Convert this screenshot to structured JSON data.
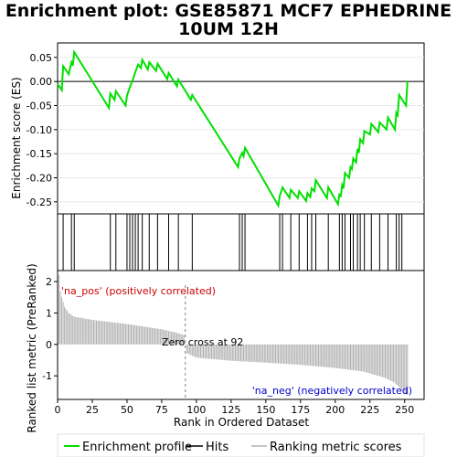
{
  "title_line1": "Enrichment plot: GSE85871 MCF7 EPHEDRINE",
  "title_line2": "10UM 12H",
  "ylabel_top": "Enrichment score (ES)",
  "ylabel_bottom": "Ranked list metric (PreRanked)",
  "xlabel": "Rank in Ordered Dataset",
  "pos_label": "'na_pos' (positively correlated)",
  "neg_label": "'na_neg' (negatively correlated)",
  "zero_cross_label": "Zero cross at 92",
  "legend": [
    {
      "label": "Enrichment profile",
      "color": "#00e000"
    },
    {
      "label": "Hits",
      "color": "#000000"
    },
    {
      "label": "Ranking metric scores",
      "color": "#b0b0b0"
    }
  ],
  "colors": {
    "profile": "#00e000",
    "hits": "#000000",
    "metric": "#b0b0b0",
    "pos_label": "#cc0000",
    "neg_label": "#0000cc",
    "zero_line": "#808080"
  },
  "chart_data": {
    "type": "line",
    "n_genes": 252,
    "zero_cross": 92,
    "es_ylim": [
      -0.275,
      0.08
    ],
    "es_yticks": [
      0.05,
      0.0,
      -0.05,
      -0.1,
      -0.15,
      -0.2,
      -0.25
    ],
    "metric_ylim": [
      -1.75,
      2.35
    ],
    "metric_yticks": [
      2,
      1,
      0,
      -1
    ],
    "xlim": [
      0,
      264
    ],
    "xticks": [
      0,
      25,
      50,
      75,
      100,
      125,
      150,
      175,
      200,
      225,
      250
    ],
    "hits": [
      4,
      10,
      12,
      38,
      42,
      50,
      52,
      54,
      56,
      58,
      61,
      66,
      72,
      80,
      87,
      97,
      131,
      133,
      135,
      160,
      162,
      168,
      174,
      180,
      183,
      186,
      195,
      203,
      205,
      207,
      211,
      213,
      216,
      218,
      221,
      226,
      232,
      238,
      244,
      246,
      248
    ],
    "es_profile": [
      [
        0,
        -0.005
      ],
      [
        3,
        -0.018
      ],
      [
        4,
        0.032
      ],
      [
        8,
        0.015
      ],
      [
        10,
        0.04
      ],
      [
        11,
        0.033
      ],
      [
        12,
        0.061
      ],
      [
        37,
        -0.055
      ],
      [
        38,
        -0.025
      ],
      [
        41,
        -0.038
      ],
      [
        42,
        -0.02
      ],
      [
        49,
        -0.05
      ],
      [
        50,
        -0.03
      ],
      [
        52,
        -0.012
      ],
      [
        54,
        0.002
      ],
      [
        56,
        0.02
      ],
      [
        58,
        0.035
      ],
      [
        60,
        0.028
      ],
      [
        61,
        0.045
      ],
      [
        65,
        0.025
      ],
      [
        66,
        0.04
      ],
      [
        71,
        0.022
      ],
      [
        72,
        0.037
      ],
      [
        79,
        0.005
      ],
      [
        80,
        0.018
      ],
      [
        86,
        -0.01
      ],
      [
        87,
        0.004
      ],
      [
        96,
        -0.038
      ],
      [
        97,
        -0.028
      ],
      [
        130,
        -0.178
      ],
      [
        131,
        -0.16
      ],
      [
        133,
        -0.148
      ],
      [
        134,
        -0.155
      ],
      [
        135,
        -0.138
      ],
      [
        159,
        -0.258
      ],
      [
        160,
        -0.238
      ],
      [
        162,
        -0.22
      ],
      [
        167,
        -0.242
      ],
      [
        168,
        -0.225
      ],
      [
        173,
        -0.242
      ],
      [
        174,
        -0.228
      ],
      [
        179,
        -0.248
      ],
      [
        180,
        -0.232
      ],
      [
        182,
        -0.24
      ],
      [
        183,
        -0.222
      ],
      [
        185,
        -0.228
      ],
      [
        186,
        -0.205
      ],
      [
        194,
        -0.242
      ],
      [
        195,
        -0.22
      ],
      [
        202,
        -0.255
      ],
      [
        203,
        -0.235
      ],
      [
        204,
        -0.238
      ],
      [
        205,
        -0.215
      ],
      [
        206,
        -0.222
      ],
      [
        207,
        -0.19
      ],
      [
        210,
        -0.2
      ],
      [
        211,
        -0.178
      ],
      [
        212,
        -0.182
      ],
      [
        213,
        -0.16
      ],
      [
        215,
        -0.168
      ],
      [
        216,
        -0.14
      ],
      [
        217,
        -0.148
      ],
      [
        218,
        -0.12
      ],
      [
        220,
        -0.128
      ],
      [
        221,
        -0.103
      ],
      [
        225,
        -0.11
      ],
      [
        226,
        -0.088
      ],
      [
        231,
        -0.105
      ],
      [
        232,
        -0.085
      ],
      [
        237,
        -0.1
      ],
      [
        238,
        -0.075
      ],
      [
        243,
        -0.1
      ],
      [
        244,
        -0.065
      ],
      [
        245,
        -0.07
      ],
      [
        246,
        -0.028
      ],
      [
        251,
        -0.05
      ],
      [
        252,
        0.0
      ]
    ],
    "metric_profile": [
      [
        1,
        2.2
      ],
      [
        2,
        1.7
      ],
      [
        3,
        1.5
      ],
      [
        5,
        1.2
      ],
      [
        8,
        1.0
      ],
      [
        12,
        0.88
      ],
      [
        25,
        0.78
      ],
      [
        50,
        0.65
      ],
      [
        75,
        0.48
      ],
      [
        85,
        0.38
      ],
      [
        91,
        0.3
      ],
      [
        92,
        0.0
      ],
      [
        93,
        -0.28
      ],
      [
        100,
        -0.42
      ],
      [
        125,
        -0.52
      ],
      [
        150,
        -0.58
      ],
      [
        175,
        -0.65
      ],
      [
        200,
        -0.75
      ],
      [
        220,
        -0.86
      ],
      [
        235,
        -1.05
      ],
      [
        242,
        -1.2
      ],
      [
        246,
        -1.35
      ],
      [
        249,
        -1.5
      ],
      [
        251,
        -1.6
      ]
    ],
    "band": [
      {
        "from": 0,
        "to": 2,
        "color": "#ff0000"
      },
      {
        "from": 2,
        "to": 6,
        "color": "#ff1f1f"
      },
      {
        "from": 6,
        "to": 12,
        "color": "#ff3a3a"
      },
      {
        "from": 12,
        "to": 24,
        "color": "#ff5050"
      },
      {
        "from": 24,
        "to": 36,
        "color": "#ff6060"
      },
      {
        "from": 36,
        "to": 50,
        "color": "#ff6e6e"
      },
      {
        "from": 50,
        "to": 64,
        "color": "#ff8080"
      },
      {
        "from": 64,
        "to": 78,
        "color": "#ff9e9e"
      },
      {
        "from": 78,
        "to": 88,
        "color": "#ffbcdc"
      },
      {
        "from": 88,
        "to": 95,
        "color": "#ffd8f2"
      },
      {
        "from": 95,
        "to": 112,
        "color": "#dcdcff"
      },
      {
        "from": 112,
        "to": 135,
        "color": "#c4c4ff"
      },
      {
        "from": 135,
        "to": 148,
        "color": "#aeaef8"
      },
      {
        "from": 148,
        "to": 185,
        "color": "#8f8fff"
      },
      {
        "from": 185,
        "to": 210,
        "color": "#7070ff"
      },
      {
        "from": 210,
        "to": 233,
        "color": "#5050f0"
      },
      {
        "from": 233,
        "to": 245,
        "color": "#2020d0"
      },
      {
        "from": 245,
        "to": 253,
        "color": "#0000b0"
      }
    ]
  }
}
